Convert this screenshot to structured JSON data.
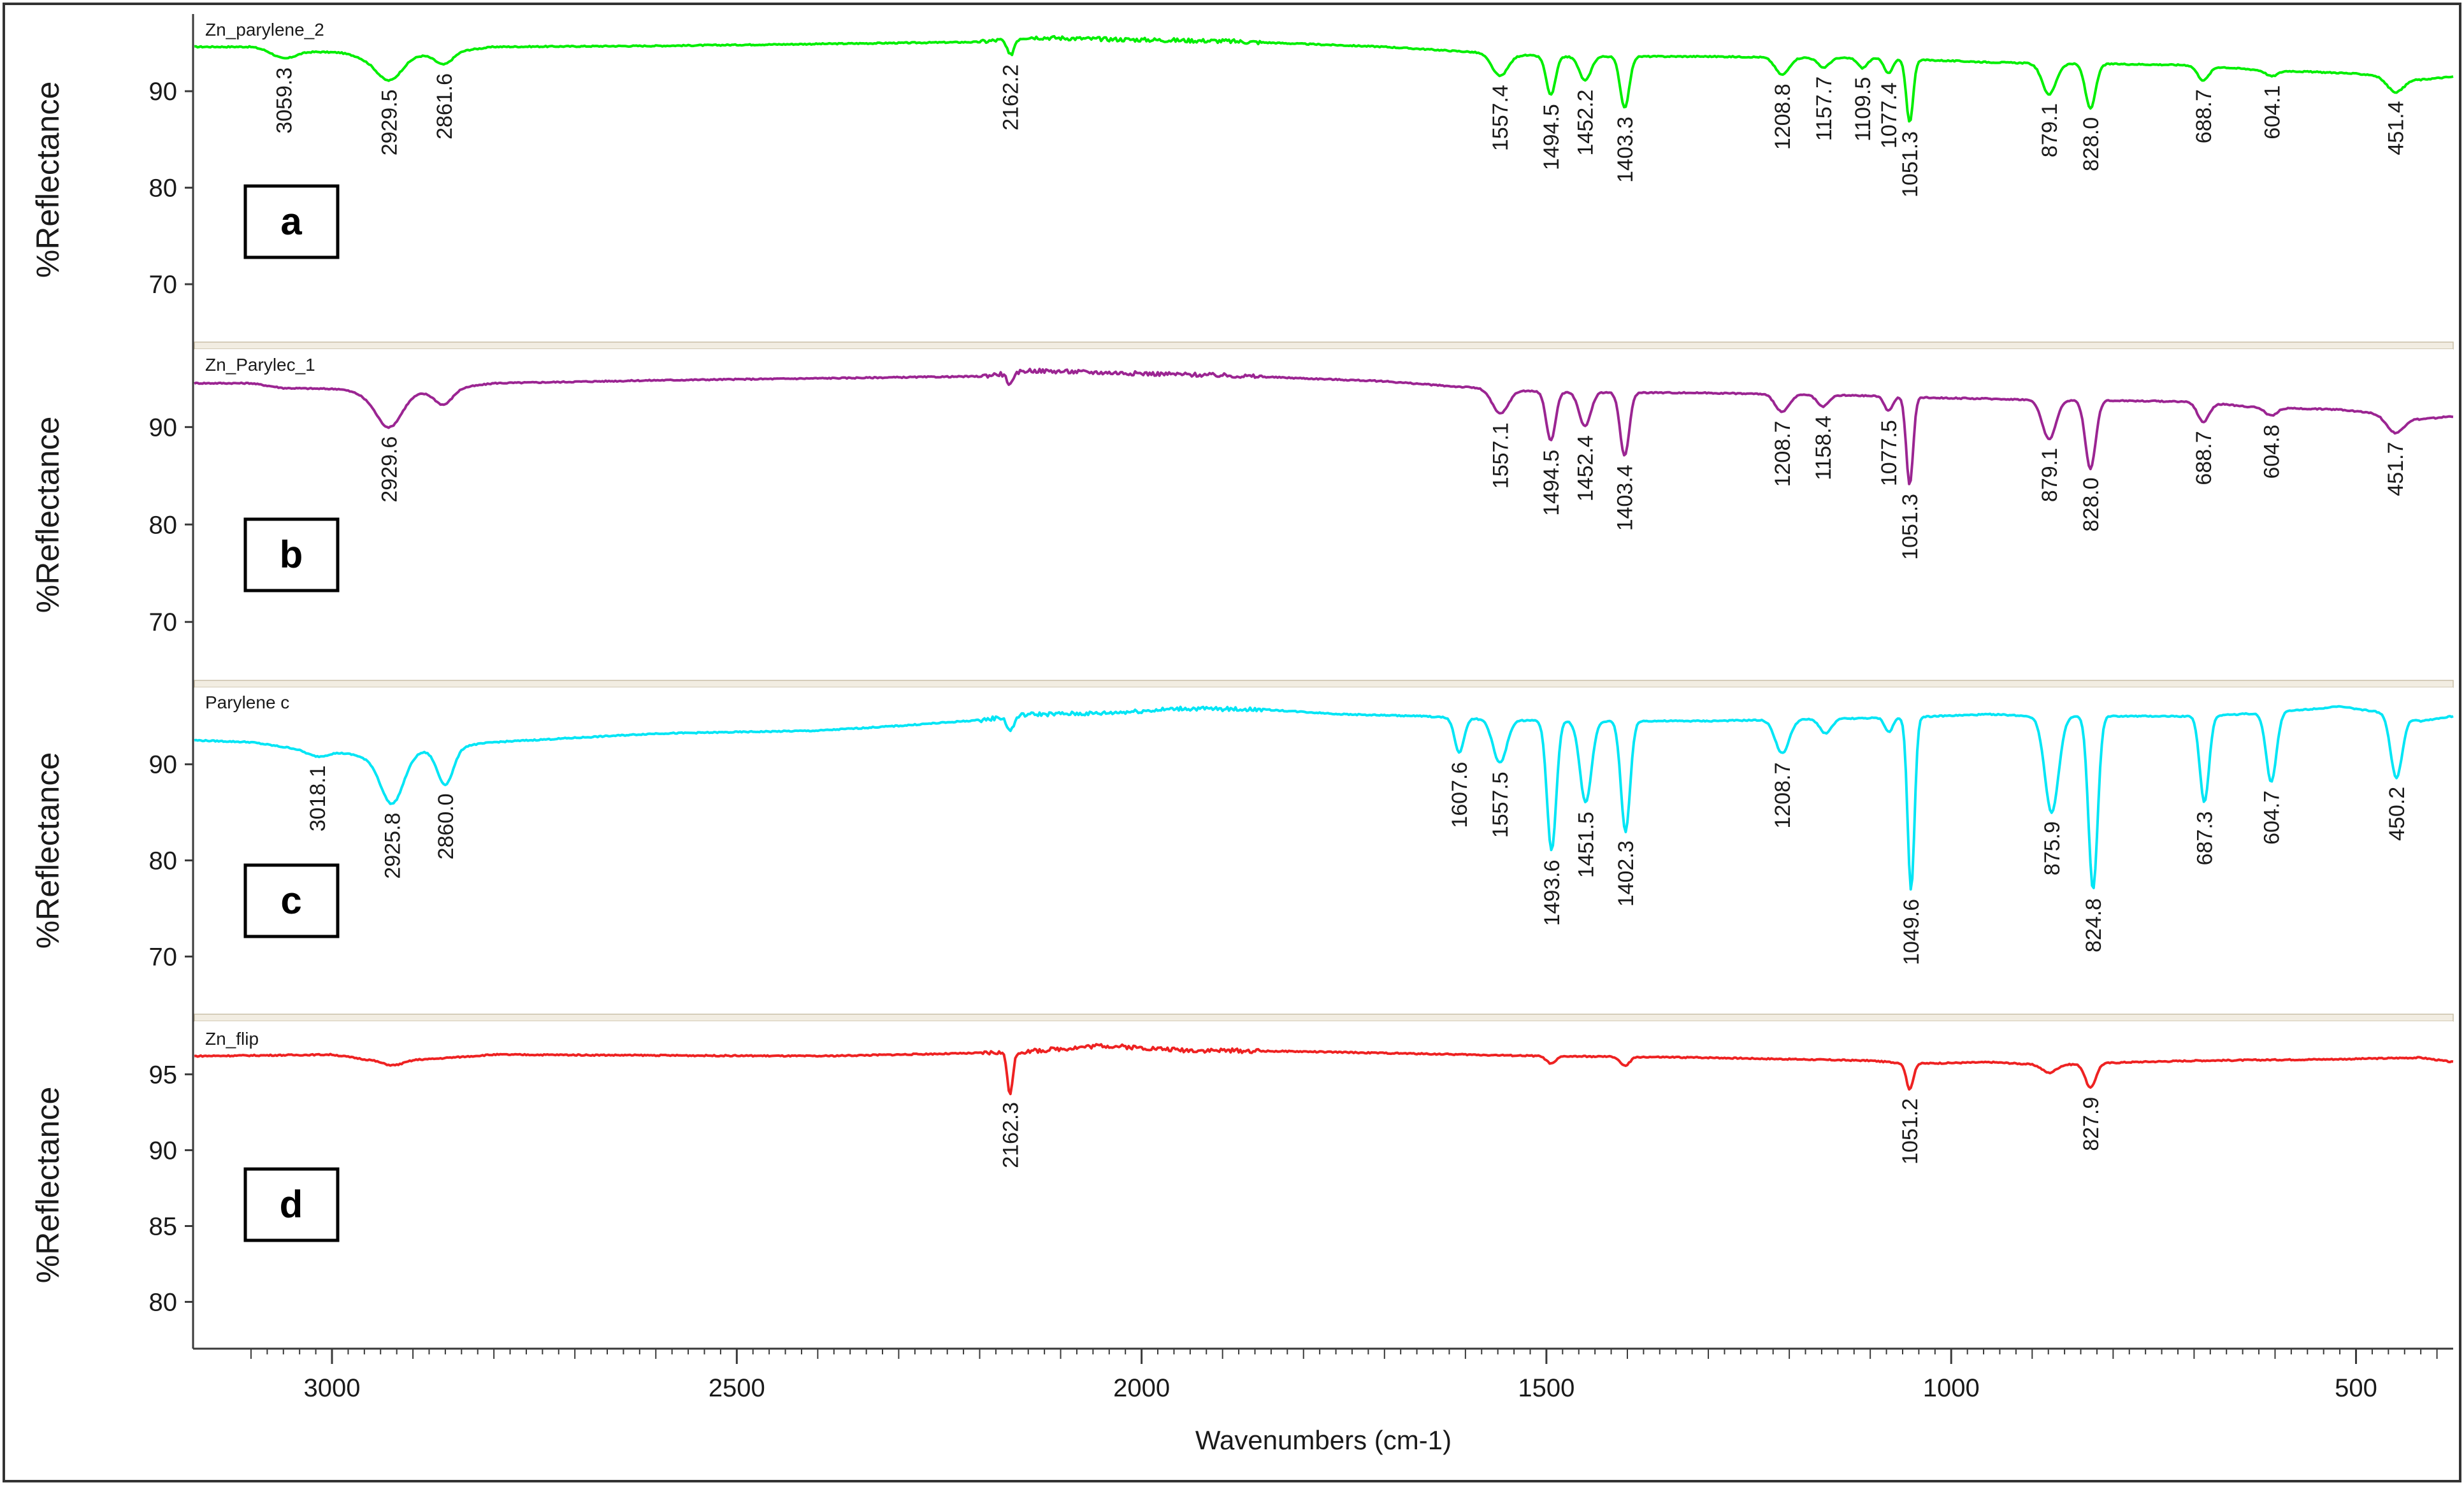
{
  "chart_data": {
    "type": "line",
    "title": "",
    "xlabel": "Wavenumbers (cm-1)",
    "ylabel": "%Reflectance",
    "xlim": [
      3170,
      380
    ],
    "x_ticks": [
      "3000",
      "2500",
      "2000",
      "1500",
      "1000",
      "500"
    ],
    "x_tick_values": [
      3000,
      2500,
      2000,
      1500,
      1000,
      500
    ],
    "panels": [
      {
        "label": "a",
        "name": "Zn_parylene_2",
        "color": "#00ee00",
        "ylim": [
          64,
          98
        ],
        "y_ticks": [
          90,
          80,
          70
        ],
        "baseline": [
          [
            3170,
            94.6
          ],
          [
            3100,
            94.6
          ],
          [
            3060,
            94.2
          ],
          [
            2990,
            94.0
          ],
          [
            2960,
            93.5
          ],
          [
            2880,
            93.8
          ],
          [
            2800,
            94.6
          ],
          [
            2600,
            94.7
          ],
          [
            2400,
            94.9
          ],
          [
            2200,
            95.1
          ],
          [
            2140,
            95.6
          ],
          [
            2050,
            95.4
          ],
          [
            1900,
            95.2
          ],
          [
            1800,
            94.9
          ],
          [
            1700,
            94.6
          ],
          [
            1620,
            94.2
          ],
          [
            1500,
            93.6
          ],
          [
            1300,
            93.6
          ],
          [
            1100,
            93.4
          ],
          [
            1020,
            93.2
          ],
          [
            950,
            93.0
          ],
          [
            900,
            92.9
          ],
          [
            780,
            92.8
          ],
          [
            700,
            92.7
          ],
          [
            620,
            92.2
          ],
          [
            520,
            91.9
          ],
          [
            460,
            91.6
          ],
          [
            420,
            91.2
          ],
          [
            380,
            91.5
          ]
        ],
        "peaks": [
          {
            "x": 3059.3,
            "depth": 0.8,
            "width": 20,
            "label": "3059.3"
          },
          {
            "x": 2929.5,
            "depth": 2.5,
            "width": 22,
            "label": "2929.5"
          },
          {
            "x": 2861.6,
            "depth": 1.2,
            "width": 15,
            "label": "2861.6"
          },
          {
            "x": 2162.2,
            "depth": 1.7,
            "width": 6,
            "label": "2162.2"
          },
          {
            "x": 1557.4,
            "depth": 2.3,
            "width": 14,
            "label": "1557.4"
          },
          {
            "x": 1494.5,
            "depth": 4.0,
            "width": 8,
            "label": "1494.5"
          },
          {
            "x": 1452.2,
            "depth": 2.5,
            "width": 10,
            "label": "1452.2"
          },
          {
            "x": 1403.3,
            "depth": 5.3,
            "width": 8,
            "label": "1403.3"
          },
          {
            "x": 1208.8,
            "depth": 1.8,
            "width": 12,
            "label": "1208.8"
          },
          {
            "x": 1157.7,
            "depth": 1.0,
            "width": 10,
            "label": "1157.7"
          },
          {
            "x": 1109.5,
            "depth": 1.0,
            "width": 8,
            "label": "1109.5"
          },
          {
            "x": 1077.4,
            "depth": 1.5,
            "width": 7,
            "label": "1077.4"
          },
          {
            "x": 1051.3,
            "depth": 6.5,
            "width": 6,
            "label": "1051.3"
          },
          {
            "x": 879.1,
            "depth": 3.2,
            "width": 12,
            "label": "879.1"
          },
          {
            "x": 828.0,
            "depth": 4.6,
            "width": 9,
            "label": "828.0"
          },
          {
            "x": 688.7,
            "depth": 1.5,
            "width": 10,
            "label": "688.7"
          },
          {
            "x": 604.1,
            "depth": 0.6,
            "width": 10,
            "label": "604.1"
          },
          {
            "x": 451.4,
            "depth": 1.6,
            "width": 15,
            "label": "451.4"
          }
        ]
      },
      {
        "label": "b",
        "name": "Zn_Parylec_1",
        "color": "#9b2592",
        "ylim": [
          64,
          98
        ],
        "y_ticks": [
          90,
          80,
          70
        ],
        "baseline": [
          [
            3170,
            94.5
          ],
          [
            3100,
            94.5
          ],
          [
            3060,
            94.0
          ],
          [
            2990,
            93.9
          ],
          [
            2960,
            93.4
          ],
          [
            2880,
            93.6
          ],
          [
            2800,
            94.5
          ],
          [
            2600,
            94.8
          ],
          [
            2400,
            95.0
          ],
          [
            2200,
            95.2
          ],
          [
            2140,
            95.8
          ],
          [
            2050,
            95.6
          ],
          [
            1900,
            95.3
          ],
          [
            1800,
            95.0
          ],
          [
            1700,
            94.7
          ],
          [
            1620,
            94.2
          ],
          [
            1500,
            93.6
          ],
          [
            1300,
            93.5
          ],
          [
            1100,
            93.2
          ],
          [
            1020,
            93.0
          ],
          [
            950,
            92.9
          ],
          [
            900,
            92.8
          ],
          [
            780,
            92.7
          ],
          [
            700,
            92.6
          ],
          [
            620,
            92.0
          ],
          [
            520,
            91.8
          ],
          [
            460,
            91.3
          ],
          [
            420,
            90.8
          ],
          [
            380,
            91.1
          ]
        ],
        "peaks": [
          {
            "x": 2929.6,
            "depth": 3.5,
            "width": 22,
            "label": "2929.6"
          },
          {
            "x": 2862,
            "depth": 1.5,
            "width": 15,
            "label": ""
          },
          {
            "x": 2162,
            "depth": 1.2,
            "width": 6,
            "label": ""
          },
          {
            "x": 1557.1,
            "depth": 2.5,
            "width": 14,
            "label": "1557.1"
          },
          {
            "x": 1494.5,
            "depth": 5.0,
            "width": 8,
            "label": "1494.5"
          },
          {
            "x": 1452.4,
            "depth": 3.5,
            "width": 10,
            "label": "1452.4"
          },
          {
            "x": 1403.4,
            "depth": 6.5,
            "width": 8,
            "label": "1403.4"
          },
          {
            "x": 1208.7,
            "depth": 1.8,
            "width": 12,
            "label": "1208.7"
          },
          {
            "x": 1158.4,
            "depth": 1.2,
            "width": 10,
            "label": "1158.4"
          },
          {
            "x": 1077.5,
            "depth": 1.5,
            "width": 7,
            "label": "1077.5"
          },
          {
            "x": 1051.3,
            "depth": 9.0,
            "width": 6,
            "label": "1051.3"
          },
          {
            "x": 879.1,
            "depth": 4.0,
            "width": 12,
            "label": "879.1"
          },
          {
            "x": 828.0,
            "depth": 7.0,
            "width": 9,
            "label": "828.0"
          },
          {
            "x": 688.7,
            "depth": 2.0,
            "width": 10,
            "label": "688.7"
          },
          {
            "x": 604.8,
            "depth": 0.8,
            "width": 10,
            "label": "604.8"
          },
          {
            "x": 451.7,
            "depth": 1.8,
            "width": 15,
            "label": "451.7"
          }
        ]
      },
      {
        "label": "c",
        "name": "Parylene c",
        "color": "#00e5f5",
        "ylim": [
          64,
          98
        ],
        "y_ticks": [
          90,
          80,
          70
        ],
        "baseline": [
          [
            3170,
            92.5
          ],
          [
            3100,
            92.3
          ],
          [
            3060,
            91.8
          ],
          [
            3000,
            91.4
          ],
          [
            2960,
            90.8
          ],
          [
            2880,
            91.5
          ],
          [
            2800,
            92.3
          ],
          [
            2600,
            93.2
          ],
          [
            2400,
            93.5
          ],
          [
            2300,
            94.0
          ],
          [
            2200,
            94.6
          ],
          [
            2140,
            95.2
          ],
          [
            2050,
            95.3
          ],
          [
            1950,
            95.8
          ],
          [
            1850,
            95.7
          ],
          [
            1750,
            95.2
          ],
          [
            1650,
            95.0
          ],
          [
            1610,
            94.8
          ],
          [
            1500,
            94.5
          ],
          [
            1300,
            94.5
          ],
          [
            1100,
            94.8
          ],
          [
            1020,
            95.0
          ],
          [
            950,
            95.2
          ],
          [
            900,
            95.0
          ],
          [
            780,
            95.0
          ],
          [
            700,
            95.0
          ],
          [
            620,
            95.3
          ],
          [
            520,
            96.0
          ],
          [
            460,
            95.3
          ],
          [
            420,
            94.5
          ],
          [
            380,
            95.0
          ]
        ],
        "peaks": [
          {
            "x": 3018.1,
            "depth": 0.7,
            "width": 20,
            "label": "3018.1"
          },
          {
            "x": 2925.8,
            "depth": 5.2,
            "width": 20,
            "label": "2925.8"
          },
          {
            "x": 2860.0,
            "depth": 3.8,
            "width": 14,
            "label": "2860.0"
          },
          {
            "x": 2162,
            "depth": 1.5,
            "width": 6,
            "label": ""
          },
          {
            "x": 1607.6,
            "depth": 3.6,
            "width": 8,
            "label": "1607.6"
          },
          {
            "x": 1557.5,
            "depth": 4.5,
            "width": 12,
            "label": "1557.5"
          },
          {
            "x": 1493.6,
            "depth": 13.5,
            "width": 8,
            "label": "1493.6"
          },
          {
            "x": 1451.5,
            "depth": 8.5,
            "width": 10,
            "label": "1451.5"
          },
          {
            "x": 1402.3,
            "depth": 11.5,
            "width": 8,
            "label": "1402.3"
          },
          {
            "x": 1208.7,
            "depth": 3.5,
            "width": 12,
            "label": "1208.7"
          },
          {
            "x": 1155,
            "depth": 1.5,
            "width": 10,
            "label": ""
          },
          {
            "x": 1077,
            "depth": 1.5,
            "width": 7,
            "label": ""
          },
          {
            "x": 1049.6,
            "depth": 18.0,
            "width": 6,
            "label": "1049.6"
          },
          {
            "x": 875.9,
            "depth": 10.0,
            "width": 12,
            "label": "875.9"
          },
          {
            "x": 824.8,
            "depth": 18.0,
            "width": 8,
            "label": "824.8"
          },
          {
            "x": 687.3,
            "depth": 9.0,
            "width": 8,
            "label": "687.3"
          },
          {
            "x": 604.7,
            "depth": 7.2,
            "width": 9,
            "label": "604.7"
          },
          {
            "x": 450.2,
            "depth": 6.5,
            "width": 10,
            "label": "450.2"
          }
        ]
      },
      {
        "label": "d",
        "name": "Zn_flip",
        "color": "#ee2222",
        "ylim": [
          77,
          98.5
        ],
        "y_ticks": [
          95,
          90,
          85,
          80
        ],
        "baseline": [
          [
            3170,
            96.2
          ],
          [
            3000,
            96.3
          ],
          [
            2960,
            96.0
          ],
          [
            2880,
            96.0
          ],
          [
            2800,
            96.3
          ],
          [
            2400,
            96.2
          ],
          [
            2200,
            96.4
          ],
          [
            2140,
            96.5
          ],
          [
            2050,
            96.9
          ],
          [
            1950,
            96.6
          ],
          [
            1800,
            96.5
          ],
          [
            1600,
            96.3
          ],
          [
            1500,
            96.2
          ],
          [
            1300,
            96.1
          ],
          [
            1100,
            95.9
          ],
          [
            1050,
            95.7
          ],
          [
            950,
            95.8
          ],
          [
            880,
            95.6
          ],
          [
            780,
            95.8
          ],
          [
            700,
            95.9
          ],
          [
            520,
            96.0
          ],
          [
            420,
            96.1
          ],
          [
            380,
            95.8
          ]
        ],
        "peaks": [
          {
            "x": 2925,
            "depth": 0.4,
            "width": 20,
            "label": ""
          },
          {
            "x": 2162.3,
            "depth": 2.7,
            "width": 5,
            "label": "2162.3"
          },
          {
            "x": 1494,
            "depth": 0.5,
            "width": 8,
            "label": ""
          },
          {
            "x": 1403,
            "depth": 0.6,
            "width": 8,
            "label": ""
          },
          {
            "x": 1051.2,
            "depth": 1.7,
            "width": 6,
            "label": "1051.2"
          },
          {
            "x": 879,
            "depth": 0.5,
            "width": 12,
            "label": ""
          },
          {
            "x": 827.9,
            "depth": 1.6,
            "width": 9,
            "label": "827.9"
          }
        ]
      }
    ]
  }
}
